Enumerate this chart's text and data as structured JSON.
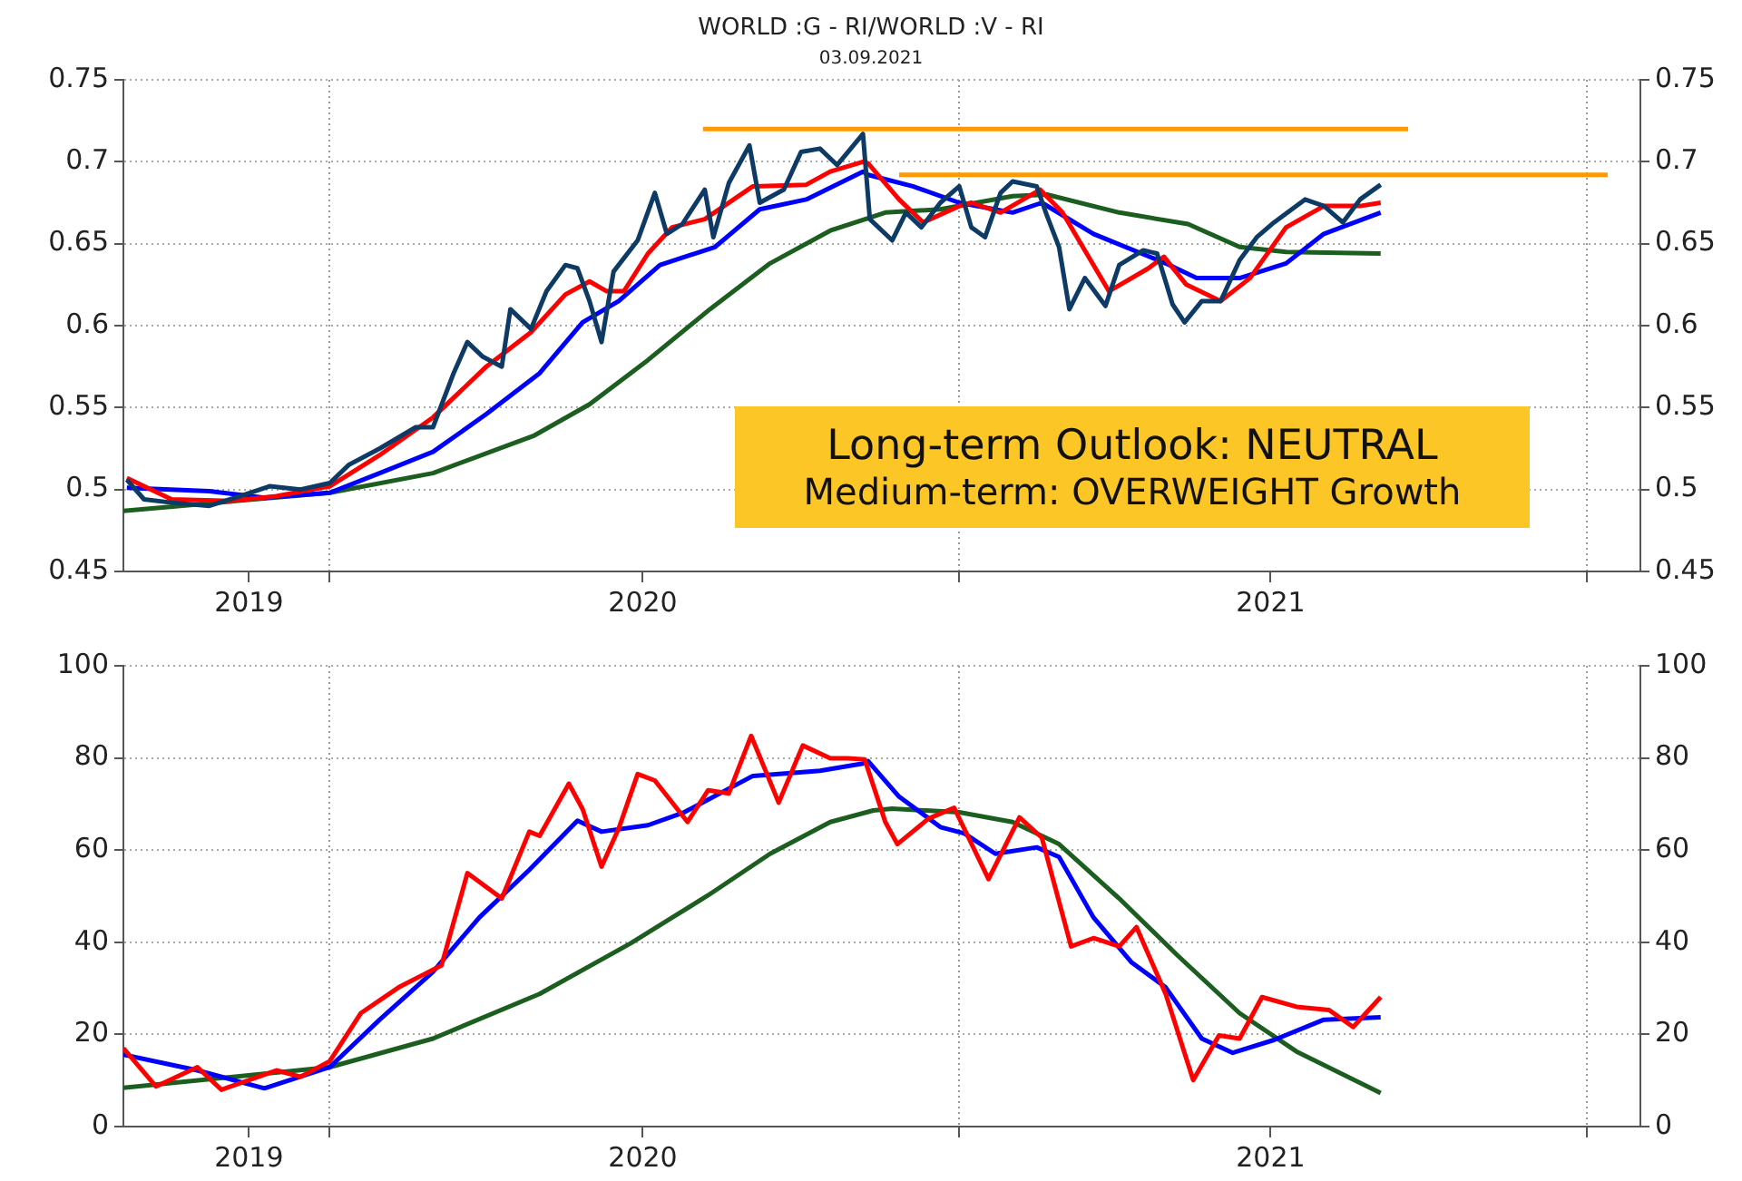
{
  "chart_data": [
    {
      "type": "line",
      "title": "WORLD :G - RI/WORLD :V - RI",
      "subtitle": "03.09.2021",
      "annotations": [
        "Long-term Outlook: NEUTRAL",
        "Medium-term: OVERWEIGHT Growth"
      ],
      "xlim": [
        "2019-09-03",
        "2022-02-01"
      ],
      "xticks": [
        {
          "value": "2019-11-15",
          "label": "2019"
        },
        {
          "value": "2020-01-01",
          "label": null
        },
        {
          "value": "2020-07-01",
          "label": "2020"
        },
        {
          "value": "2021-01-01",
          "label": null
        },
        {
          "value": "2021-07-01",
          "label": "2021"
        },
        {
          "value": "2022-01-01",
          "label": null
        }
      ],
      "ylim": [
        0.45,
        0.75
      ],
      "yticks": [
        0.45,
        0.5,
        0.55,
        0.6,
        0.65,
        0.7,
        0.75
      ],
      "y2lim": [
        0.45,
        0.75
      ],
      "y2ticks": [
        0.45,
        0.5,
        0.55,
        0.6,
        0.65,
        0.7,
        0.75
      ],
      "grid": true,
      "series": [
        {
          "type": "line",
          "color": "#0d3b66",
          "x": [
            "2019-09-05",
            "2019-09-15",
            "2019-10-01",
            "2019-10-23",
            "2019-11-10",
            "2019-11-27",
            "2019-12-15",
            "2020-01-01",
            "2020-01-12",
            "2020-01-30",
            "2020-02-20",
            "2020-03-01",
            "2020-03-13",
            "2020-03-21",
            "2020-03-30",
            "2020-04-10",
            "2020-04-15",
            "2020-04-27",
            "2020-05-06",
            "2020-05-17",
            "2020-05-24",
            "2020-05-31",
            "2020-06-07",
            "2020-06-14",
            "2020-06-28",
            "2020-07-08",
            "2020-07-15",
            "2020-07-24",
            "2020-08-06",
            "2020-08-11",
            "2020-08-20",
            "2020-09-01",
            "2020-09-07",
            "2020-09-21",
            "2020-10-01",
            "2020-10-12",
            "2020-10-22",
            "2020-11-06",
            "2020-11-10",
            "2020-11-23",
            "2020-12-01",
            "2020-12-10",
            "2020-12-21",
            "2021-01-01",
            "2021-01-08",
            "2021-01-16",
            "2021-01-25",
            "2021-02-01",
            "2021-02-15",
            "2021-02-21",
            "2021-02-28",
            "2021-03-06",
            "2021-03-15",
            "2021-03-27",
            "2021-04-04",
            "2021-04-18",
            "2021-04-26",
            "2021-05-05",
            "2021-05-12",
            "2021-05-22",
            "2021-06-02",
            "2021-06-13",
            "2021-06-23",
            "2021-07-03",
            "2021-07-21",
            "2021-08-01",
            "2021-08-12",
            "2021-08-22",
            "2021-09-03"
          ],
          "values": [
            0.506,
            0.494,
            0.492,
            0.49,
            0.496,
            0.502,
            0.5,
            0.504,
            0.515,
            0.525,
            0.538,
            0.538,
            0.571,
            0.59,
            0.581,
            0.575,
            0.61,
            0.598,
            0.621,
            0.637,
            0.635,
            0.615,
            0.59,
            0.633,
            0.652,
            0.681,
            0.656,
            0.662,
            0.683,
            0.654,
            0.687,
            0.71,
            0.675,
            0.683,
            0.706,
            0.708,
            0.698,
            0.717,
            0.665,
            0.652,
            0.669,
            0.66,
            0.675,
            0.685,
            0.66,
            0.654,
            0.681,
            0.688,
            0.685,
            0.667,
            0.648,
            0.61,
            0.629,
            0.612,
            0.637,
            0.646,
            0.644,
            0.613,
            0.602,
            0.615,
            0.615,
            0.64,
            0.654,
            0.663,
            0.677,
            0.673,
            0.663,
            0.677,
            0.686
          ]
        },
        {
          "type": "line",
          "color": "#ff0000",
          "x": [
            "2019-09-05",
            "2019-10-01",
            "2019-11-04",
            "2019-12-01",
            "2020-01-01",
            "2020-01-30",
            "2020-03-01",
            "2020-04-01",
            "2020-04-27",
            "2020-05-17",
            "2020-05-31",
            "2020-06-10",
            "2020-06-20",
            "2020-07-04",
            "2020-07-18",
            "2020-08-06",
            "2020-09-03",
            "2020-10-04",
            "2020-10-18",
            "2020-11-06",
            "2020-11-09",
            "2020-11-27",
            "2020-12-11",
            "2021-01-01",
            "2021-01-08",
            "2021-01-25",
            "2021-02-17",
            "2021-03-02",
            "2021-03-29",
            "2021-04-21",
            "2021-04-30",
            "2021-05-13",
            "2021-06-02",
            "2021-06-19",
            "2021-07-10",
            "2021-08-01",
            "2021-08-22",
            "2021-09-03"
          ],
          "values": [
            0.507,
            0.494,
            0.493,
            0.496,
            0.502,
            0.521,
            0.544,
            0.575,
            0.596,
            0.619,
            0.627,
            0.621,
            0.621,
            0.644,
            0.66,
            0.665,
            0.685,
            0.686,
            0.694,
            0.7,
            0.699,
            0.677,
            0.663,
            0.673,
            0.675,
            0.669,
            0.683,
            0.669,
            0.621,
            0.635,
            0.642,
            0.625,
            0.615,
            0.629,
            0.66,
            0.673,
            0.673,
            0.675
          ]
        },
        {
          "type": "line",
          "color": "#0000ff",
          "x": [
            "2019-09-05",
            "2019-10-23",
            "2019-11-24",
            "2020-01-01",
            "2020-01-30",
            "2020-03-01",
            "2020-04-01",
            "2020-05-02",
            "2020-05-27",
            "2020-06-17",
            "2020-07-11",
            "2020-08-12",
            "2020-09-07",
            "2020-10-04",
            "2020-11-06",
            "2020-11-09",
            "2020-12-05",
            "2021-01-01",
            "2021-02-01",
            "2021-02-18",
            "2021-03-20",
            "2021-05-01",
            "2021-05-19",
            "2021-06-13",
            "2021-07-10",
            "2021-08-01",
            "2021-09-03"
          ],
          "values": [
            0.501,
            0.499,
            0.495,
            0.498,
            0.51,
            0.523,
            0.546,
            0.571,
            0.602,
            0.615,
            0.637,
            0.648,
            0.671,
            0.677,
            0.694,
            0.692,
            0.685,
            0.675,
            0.669,
            0.675,
            0.656,
            0.638,
            0.629,
            0.629,
            0.638,
            0.656,
            0.669
          ]
        },
        {
          "type": "line",
          "color": "#1b5e20",
          "x": [
            "2019-09-03",
            "2020-01-01",
            "2020-03-01",
            "2020-04-29",
            "2020-05-31",
            "2020-07-04",
            "2020-08-09",
            "2020-09-13",
            "2020-10-18",
            "2020-11-19",
            "2020-12-21",
            "2021-02-01",
            "2021-02-21",
            "2021-04-04",
            "2021-05-14",
            "2021-06-13",
            "2021-07-10",
            "2021-09-03"
          ],
          "values": [
            0.487,
            0.498,
            0.51,
            0.533,
            0.552,
            0.579,
            0.61,
            0.638,
            0.658,
            0.669,
            0.671,
            0.679,
            0.68,
            0.669,
            0.662,
            0.648,
            0.645,
            0.644
          ]
        },
        {
          "type": "line",
          "color": "#ff9900",
          "x": [
            "2020-08-05",
            "2021-09-19"
          ],
          "values": [
            0.72,
            0.72
          ]
        },
        {
          "type": "line",
          "color": "#ff9900",
          "x": [
            "2020-11-27",
            "2022-01-13"
          ],
          "values": [
            0.692,
            0.692
          ]
        }
      ]
    },
    {
      "type": "line",
      "xlim": [
        "2019-09-03",
        "2022-02-01"
      ],
      "xticks": [
        {
          "value": "2019-11-15",
          "label": "2019"
        },
        {
          "value": "2020-01-01",
          "label": null
        },
        {
          "value": "2020-07-01",
          "label": "2020"
        },
        {
          "value": "2021-01-01",
          "label": null
        },
        {
          "value": "2021-07-01",
          "label": "2021"
        },
        {
          "value": "2022-01-01",
          "label": null
        }
      ],
      "ylim": [
        0,
        100
      ],
      "yticks": [
        0,
        20,
        40,
        60,
        80,
        100
      ],
      "y2lim": [
        0,
        100
      ],
      "y2ticks": [
        0,
        20,
        40,
        60,
        80,
        100
      ],
      "grid": true,
      "series": [
        {
          "type": "line",
          "color": "#ff0000",
          "x": [
            "2019-09-03",
            "2019-09-22",
            "2019-10-16",
            "2019-10-30",
            "2019-12-01",
            "2019-12-15",
            "2020-01-01",
            "2020-01-19",
            "2020-02-10",
            "2020-02-24",
            "2020-03-06",
            "2020-03-21",
            "2020-04-10",
            "2020-04-26",
            "2020-05-02",
            "2020-05-19",
            "2020-05-27",
            "2020-06-07",
            "2020-06-17",
            "2020-06-28",
            "2020-07-08",
            "2020-07-27",
            "2020-08-08",
            "2020-08-20",
            "2020-09-02",
            "2020-09-18",
            "2020-10-02",
            "2020-10-18",
            "2020-10-28",
            "2020-11-07",
            "2020-11-19",
            "2020-11-26",
            "2020-12-14",
            "2020-12-29",
            "2021-01-18",
            "2021-02-05",
            "2021-02-18",
            "2021-03-07",
            "2021-03-20",
            "2021-04-04",
            "2021-04-14",
            "2021-05-01",
            "2021-05-17",
            "2021-06-01",
            "2021-06-13",
            "2021-06-26",
            "2021-07-16",
            "2021-08-04",
            "2021-08-18",
            "2021-09-03"
          ],
          "values": [
            17.0,
            8.7,
            12.9,
            8.0,
            12.2,
            10.8,
            14.2,
            24.6,
            30.2,
            32.9,
            35.0,
            55.0,
            49.5,
            64.0,
            63.1,
            74.4,
            68.9,
            56.4,
            64.7,
            76.5,
            75.1,
            66.1,
            73.0,
            72.3,
            84.8,
            70.3,
            82.7,
            79.9,
            79.9,
            79.7,
            66.1,
            61.3,
            66.8,
            69.2,
            53.7,
            67.1,
            62.7,
            39.1,
            40.9,
            39.1,
            43.3,
            28.8,
            10.1,
            19.8,
            19.1,
            28.1,
            26.0,
            25.3,
            21.6,
            28.1
          ]
        },
        {
          "type": "line",
          "color": "#0000ff",
          "x": [
            "2019-09-03",
            "2019-10-16",
            "2019-11-24",
            "2020-01-01",
            "2020-01-30",
            "2020-03-01",
            "2020-03-28",
            "2020-04-26",
            "2020-05-24",
            "2020-06-07",
            "2020-07-04",
            "2020-07-25",
            "2020-09-03",
            "2020-10-12",
            "2020-11-06",
            "2020-11-09",
            "2020-11-27",
            "2020-12-21",
            "2021-01-04",
            "2021-01-22",
            "2021-02-15",
            "2021-02-28",
            "2021-03-20",
            "2021-04-11",
            "2021-05-01",
            "2021-05-22",
            "2021-06-09",
            "2021-07-03",
            "2021-08-01",
            "2021-09-03"
          ],
          "values": [
            15.6,
            12.2,
            8.3,
            12.9,
            23.2,
            33.6,
            45.4,
            55.7,
            66.4,
            64.0,
            65.4,
            68.2,
            76.1,
            77.2,
            78.8,
            79.3,
            71.6,
            65.0,
            63.6,
            59.2,
            60.6,
            58.5,
            45.4,
            35.7,
            30.2,
            19.1,
            16.0,
            18.8,
            23.2,
            23.7
          ]
        },
        {
          "type": "line",
          "color": "#1b5e20",
          "x": [
            "2019-09-03",
            "2020-01-01",
            "2020-03-01",
            "2020-05-02",
            "2020-06-24",
            "2020-08-08",
            "2020-09-13",
            "2020-10-18",
            "2020-11-12",
            "2020-11-23",
            "2021-01-01",
            "2021-02-01",
            "2021-02-28",
            "2021-04-04",
            "2021-05-08",
            "2021-06-13",
            "2021-07-16",
            "2021-09-03"
          ],
          "values": [
            8.4,
            12.9,
            19.1,
            28.8,
            39.8,
            50.2,
            59.2,
            66.1,
            68.6,
            69.0,
            68.2,
            66.1,
            61.3,
            49.5,
            37.1,
            24.6,
            16.3,
            7.3
          ]
        }
      ]
    }
  ]
}
